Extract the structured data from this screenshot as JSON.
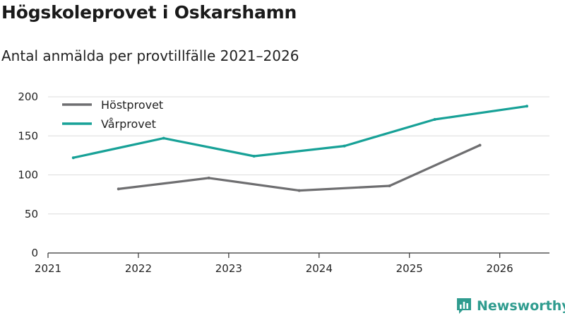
{
  "chart_data": {
    "type": "line",
    "title": "Högskoleprovet i Oskarshamn",
    "subtitle": "Antal anmälda per provtillfälle 2021–2026",
    "xlabel": "",
    "ylabel": "",
    "xlim": [
      2021,
      2026.55
    ],
    "ylim": [
      0,
      200
    ],
    "yticks": [
      0,
      50,
      100,
      150,
      200
    ],
    "xticks": [
      2021,
      2022,
      2023,
      2024,
      2025,
      2026
    ],
    "grid": true,
    "legend_position": "top-left",
    "series": [
      {
        "name": "Höstprovet",
        "color": "#6e6e70",
        "x": [
          2021.78,
          2022.78,
          2023.78,
          2024.78,
          2025.78
        ],
        "values": [
          82,
          96,
          80,
          86,
          138
        ]
      },
      {
        "name": "Vårprovet",
        "color": "#17a197",
        "x": [
          2021.28,
          2022.28,
          2023.28,
          2024.28,
          2025.28,
          2026.3
        ],
        "values": [
          122,
          147,
          124,
          137,
          171,
          188
        ]
      }
    ]
  },
  "brand": {
    "name": "Newsworthy",
    "icon": "newsworthy-logo-icon",
    "color": "#2f9c8f"
  }
}
